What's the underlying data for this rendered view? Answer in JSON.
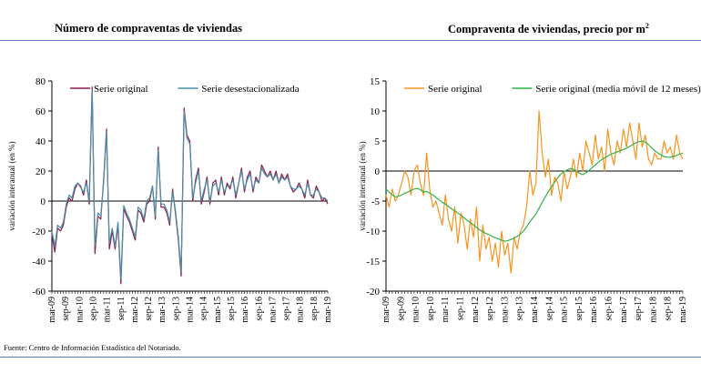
{
  "left_title": "Número de compraventas de viviendas",
  "right_title": "Compraventa de viviendas, precio por m",
  "right_title_sup": "2",
  "source": "Fuente: Centro de Información Estadística del Notariado.",
  "chart_data": [
    {
      "type": "line",
      "ylabel": "variación interanual (en %)",
      "ylim": [
        -60,
        80
      ],
      "yticks": [
        -60,
        -40,
        -20,
        0,
        20,
        40,
        60,
        80
      ],
      "xtick_labels": [
        "mar-09",
        "sep-09",
        "mar-10",
        "sep-10",
        "mar-11",
        "sep-11",
        "mar-12",
        "sep-12",
        "mar-13",
        "sep-13",
        "mar-14",
        "sep-14",
        "mar-15",
        "sep-15",
        "mar-16",
        "sep-16",
        "mar-17",
        "sep-17",
        "mar-18",
        "sep-18",
        "mar-19"
      ],
      "grid": false,
      "legend_position": "top",
      "series": [
        {
          "name": "Serie original",
          "color": "#8b1a4a",
          "values": [
            -22,
            -34,
            -18,
            -20,
            -16,
            -4,
            2,
            0,
            8,
            12,
            10,
            4,
            14,
            -2,
            76,
            -35,
            -10,
            -12,
            14,
            48,
            -32,
            -20,
            -32,
            -16,
            -55,
            -5,
            -10,
            -14,
            -20,
            -26,
            -6,
            -8,
            -14,
            -2,
            0,
            10,
            -12,
            36,
            -4,
            -4,
            -8,
            -16,
            8,
            -8,
            -26,
            -50,
            62,
            44,
            40,
            0,
            14,
            22,
            -2,
            6,
            16,
            -2,
            12,
            14,
            4,
            16,
            4,
            12,
            8,
            16,
            2,
            12,
            22,
            6,
            16,
            20,
            6,
            16,
            12,
            24,
            20,
            16,
            20,
            14,
            20,
            12,
            18,
            14,
            18,
            10,
            6,
            8,
            12,
            8,
            2,
            14,
            4,
            2,
            10,
            6,
            0,
            2,
            -2
          ]
        },
        {
          "name": "Serie desestacionalizada",
          "color": "#4a8fa8",
          "values": [
            -20,
            -30,
            -16,
            -18,
            -14,
            -2,
            4,
            2,
            10,
            12,
            9,
            6,
            12,
            0,
            74,
            -30,
            -8,
            -10,
            12,
            46,
            -28,
            -18,
            -30,
            -14,
            -52,
            -3,
            -8,
            -12,
            -18,
            -24,
            -4,
            -6,
            -12,
            0,
            2,
            10,
            -10,
            34,
            -2,
            -2,
            -6,
            -14,
            6,
            -6,
            -24,
            -47,
            60,
            42,
            38,
            2,
            12,
            20,
            0,
            8,
            14,
            0,
            10,
            12,
            6,
            14,
            6,
            10,
            10,
            14,
            4,
            12,
            20,
            8,
            14,
            18,
            8,
            14,
            12,
            22,
            18,
            16,
            18,
            14,
            18,
            12,
            16,
            14,
            16,
            10,
            8,
            8,
            10,
            8,
            4,
            12,
            4,
            4,
            8,
            6,
            2,
            2,
            0
          ]
        }
      ]
    },
    {
      "type": "line",
      "ylabel": "variación interanual (en %)",
      "ylim": [
        -20,
        15
      ],
      "yticks": [
        -20,
        -15,
        -10,
        -5,
        0,
        5,
        10,
        15
      ],
      "xtick_labels": [
        "mar-09",
        "sep-09",
        "mar-10",
        "sep-10",
        "mar-11",
        "sep-11",
        "mar-12",
        "sep-12",
        "mar-13",
        "sep-13",
        "mar-14",
        "sep-14",
        "mar-15",
        "sep-15",
        "mar-16",
        "sep-16",
        "mar-17",
        "sep-17",
        "mar-18",
        "sep-18",
        "mar-19"
      ],
      "grid": false,
      "legend_position": "top",
      "series": [
        {
          "name": "Serie original",
          "color": "#f7941d",
          "values": [
            -4,
            -6,
            -3,
            -5,
            -4,
            -2,
            0,
            -1,
            -4,
            0,
            1,
            -2,
            -4,
            3,
            -3,
            -6,
            -5,
            -7,
            -9,
            -4,
            -8,
            -10,
            -6,
            -12,
            -7,
            -9,
            -13,
            -8,
            -11,
            -6,
            -15,
            -9,
            -13,
            -11,
            -15,
            -12,
            -16,
            -10,
            -14,
            -12,
            -17,
            -11,
            -13,
            -10,
            -9,
            -6,
            0,
            -4,
            -2,
            10,
            3,
            -1,
            2,
            -4,
            -1,
            -2,
            -5,
            0,
            -3,
            -1,
            2,
            -1,
            3,
            0,
            5,
            3,
            1,
            6,
            2,
            4,
            0,
            7,
            3,
            1,
            5,
            3,
            7,
            4,
            8,
            5,
            2,
            8,
            4,
            6,
            2,
            1,
            3,
            2,
            2,
            5,
            3,
            4,
            2,
            6,
            3,
            2
          ]
        },
        {
          "name": "Serie original (media móvil de 12 meses)",
          "color": "#2eb34a",
          "values": [
            -3,
            -3.5,
            -4,
            -4.3,
            -4.2,
            -4,
            -3.7,
            -3.5,
            -3.2,
            -3,
            -2.9,
            -3.1,
            -3.5,
            -3.4,
            -3.7,
            -4,
            -4.4,
            -4.8,
            -5.2,
            -5.5,
            -5.9,
            -6.3,
            -6.6,
            -7,
            -7.4,
            -7.8,
            -8.2,
            -8.6,
            -9,
            -9.4,
            -9.8,
            -10.1,
            -10.4,
            -10.6,
            -10.9,
            -11.1,
            -11.3,
            -11.5,
            -11.7,
            -11.6,
            -11.4,
            -11.2,
            -10.9,
            -10.5,
            -10,
            -9.3,
            -8.5,
            -7.8,
            -7.2,
            -6.2,
            -5.2,
            -4.3,
            -3.4,
            -2.6,
            -1.8,
            -1.1,
            -0.5,
            -0.1,
            0.2,
            0.4,
            0.3,
            0,
            -0.4,
            -0.6,
            -0.3,
            0.1,
            0.6,
            1,
            1.5,
            1.9,
            2.2,
            2.5,
            2.8,
            3,
            3.2,
            3.4,
            3.6,
            3.8,
            4.1,
            4.4,
            4.7,
            4.9,
            5,
            4.8,
            4.4,
            3.9,
            3.4,
            3,
            2.7,
            2.4,
            2.3,
            2.3,
            2.4,
            2.6,
            2.8,
            3
          ]
        }
      ]
    }
  ]
}
